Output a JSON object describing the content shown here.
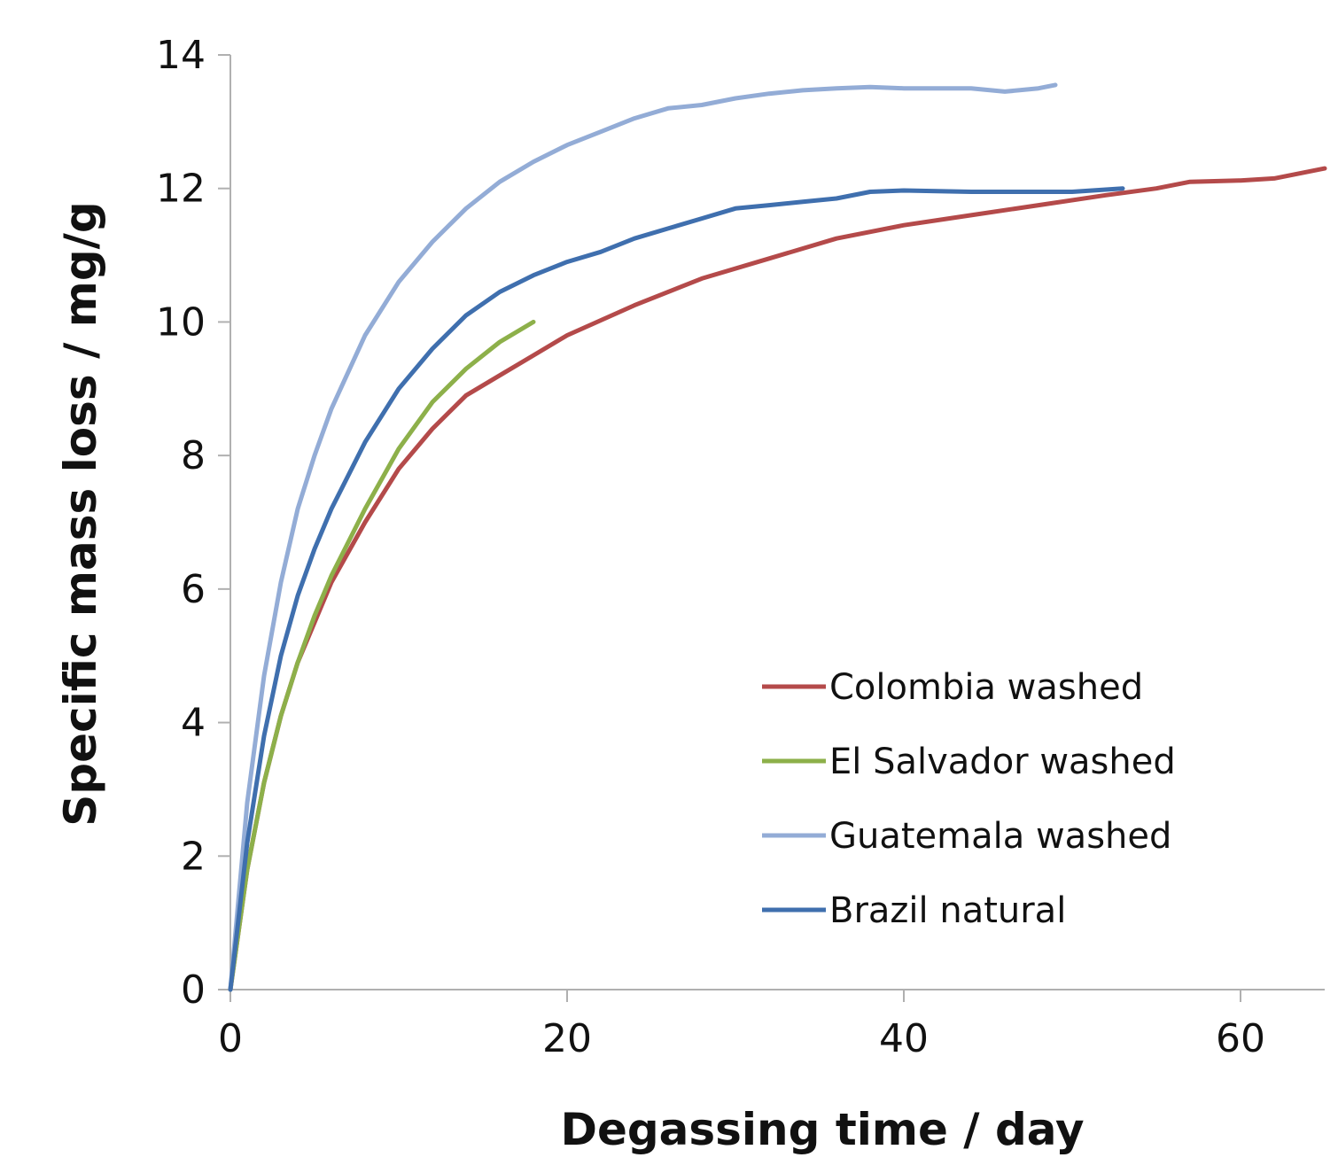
{
  "chart_data": {
    "type": "line",
    "title": "",
    "xlabel": "Degassing time / day",
    "ylabel": "Specific mass loss / mg/g",
    "xlim": [
      0,
      65
    ],
    "ylim": [
      0,
      14
    ],
    "xticks": [
      0,
      20,
      40,
      60
    ],
    "yticks": [
      0,
      2,
      4,
      6,
      8,
      10,
      12,
      14
    ],
    "grid": false,
    "legend_position": "bottom-right",
    "series": [
      {
        "name": "Colombia washed",
        "color": "#b44a4a",
        "x": [
          0,
          1,
          2,
          3,
          4,
          5,
          6,
          8,
          10,
          12,
          14,
          16,
          18,
          20,
          24,
          28,
          32,
          36,
          40,
          44,
          48,
          52,
          55,
          57,
          60,
          62,
          65
        ],
        "y": [
          0,
          1.8,
          3.1,
          4.1,
          4.9,
          5.5,
          6.1,
          7.0,
          7.8,
          8.4,
          8.9,
          9.2,
          9.5,
          9.8,
          10.25,
          10.65,
          10.95,
          11.25,
          11.45,
          11.6,
          11.75,
          11.9,
          12.0,
          12.1,
          12.12,
          12.15,
          12.3
        ]
      },
      {
        "name": "El Salvador washed",
        "color": "#8db04a",
        "x": [
          0,
          1,
          2,
          3,
          4,
          5,
          6,
          8,
          10,
          12,
          14,
          16,
          18
        ],
        "y": [
          0,
          1.8,
          3.1,
          4.1,
          4.9,
          5.6,
          6.2,
          7.2,
          8.1,
          8.8,
          9.3,
          9.7,
          10.0
        ]
      },
      {
        "name": "Guatemala washed",
        "color": "#93acd6",
        "x": [
          0,
          1,
          2,
          3,
          4,
          5,
          6,
          8,
          10,
          12,
          14,
          16,
          18,
          20,
          22,
          24,
          26,
          28,
          30,
          32,
          34,
          36,
          38,
          40,
          42,
          44,
          46,
          48,
          49
        ],
        "y": [
          0,
          2.8,
          4.7,
          6.1,
          7.2,
          8.0,
          8.7,
          9.8,
          10.6,
          11.2,
          11.7,
          12.1,
          12.4,
          12.65,
          12.85,
          13.05,
          13.2,
          13.25,
          13.35,
          13.42,
          13.47,
          13.5,
          13.52,
          13.5,
          13.5,
          13.5,
          13.45,
          13.5,
          13.55
        ]
      },
      {
        "name": "Brazil natural",
        "color": "#3f6fae",
        "x": [
          0,
          1,
          2,
          3,
          4,
          5,
          6,
          8,
          10,
          12,
          14,
          16,
          18,
          20,
          22,
          24,
          26,
          28,
          30,
          32,
          34,
          36,
          38,
          40,
          42,
          44,
          46,
          48,
          50,
          53
        ],
        "y": [
          0,
          2.2,
          3.8,
          5.0,
          5.9,
          6.6,
          7.2,
          8.2,
          9.0,
          9.6,
          10.1,
          10.45,
          10.7,
          10.9,
          11.05,
          11.25,
          11.4,
          11.55,
          11.7,
          11.75,
          11.8,
          11.85,
          11.95,
          11.97,
          11.96,
          11.95,
          11.95,
          11.95,
          11.95,
          12.0
        ]
      }
    ]
  }
}
